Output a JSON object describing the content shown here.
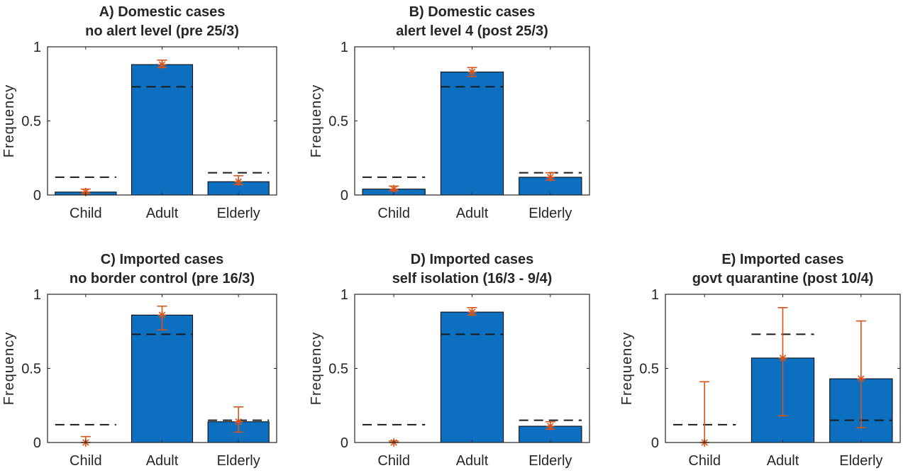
{
  "chart_data": [
    {
      "type": "bar",
      "title": "A) Domestic cases",
      "subtitle": "no alert level (pre 25/3)",
      "ylabel": "Frequency",
      "categories": [
        "Child",
        "Adult",
        "Elderly"
      ],
      "values": [
        0.02,
        0.88,
        0.09
      ],
      "reference": [
        0.12,
        0.73,
        0.15
      ],
      "marker": [
        0.02,
        0.88,
        0.09
      ],
      "err_low": [
        0.01,
        0.86,
        0.07
      ],
      "err_high": [
        0.04,
        0.91,
        0.13
      ],
      "ylim": [
        0,
        1
      ],
      "yticks": [
        "0",
        "0.5",
        "1"
      ]
    },
    {
      "type": "bar",
      "title": "B) Domestic cases",
      "subtitle": "alert level 4 (post 25/3)",
      "ylabel": "Frequency",
      "categories": [
        "Child",
        "Adult",
        "Elderly"
      ],
      "values": [
        0.04,
        0.83,
        0.12
      ],
      "reference": [
        0.12,
        0.73,
        0.15
      ],
      "marker": [
        0.04,
        0.83,
        0.12
      ],
      "err_low": [
        0.03,
        0.8,
        0.1
      ],
      "err_high": [
        0.06,
        0.86,
        0.15
      ],
      "ylim": [
        0,
        1
      ],
      "yticks": [
        "0",
        "0.5",
        "1"
      ]
    },
    {
      "type": "bar",
      "title": "C) Imported cases",
      "subtitle": "no border control (pre 16/3)",
      "ylabel": "Frequency",
      "categories": [
        "Child",
        "Adult",
        "Elderly"
      ],
      "values": [
        0.0,
        0.86,
        0.14
      ],
      "reference": [
        0.12,
        0.73,
        0.15
      ],
      "marker": [
        0.0,
        0.86,
        0.14
      ],
      "err_low": [
        0.0,
        0.76,
        0.07
      ],
      "err_high": [
        0.04,
        0.92,
        0.24
      ],
      "ylim": [
        0,
        1
      ],
      "yticks": [
        "0",
        "0.5",
        "1"
      ]
    },
    {
      "type": "bar",
      "title": "D) Imported cases",
      "subtitle": "self isolation (16/3 - 9/4)",
      "ylabel": "Frequency",
      "categories": [
        "Child",
        "Adult",
        "Elderly"
      ],
      "values": [
        0.0,
        0.88,
        0.11
      ],
      "reference": [
        0.12,
        0.73,
        0.15
      ],
      "marker": [
        0.0,
        0.88,
        0.11
      ],
      "err_low": [
        0.0,
        0.86,
        0.09
      ],
      "err_high": [
        0.01,
        0.91,
        0.14
      ],
      "ylim": [
        0,
        1
      ],
      "yticks": [
        "0",
        "0.5",
        "1"
      ]
    },
    {
      "type": "bar",
      "title": "E) Imported cases",
      "subtitle": "govt quarantine (post 10/4)",
      "ylabel": "Frequency",
      "categories": [
        "Child",
        "Adult",
        "Elderly"
      ],
      "values": [
        0.0,
        0.57,
        0.43
      ],
      "reference": [
        0.12,
        0.73,
        0.15
      ],
      "marker": [
        0.0,
        0.57,
        0.43
      ],
      "err_low": [
        0.0,
        0.18,
        0.1
      ],
      "err_high": [
        0.41,
        0.91,
        0.82
      ],
      "ylim": [
        0,
        1
      ],
      "yticks": [
        "0",
        "0.5",
        "1"
      ]
    }
  ],
  "colors": {
    "bar_fill": "#0d6fc0",
    "bar_edge": "#000000",
    "marker": "#d9541a",
    "reference_line": "#1a1a1a",
    "axis": "#262626",
    "text": "#262626"
  }
}
